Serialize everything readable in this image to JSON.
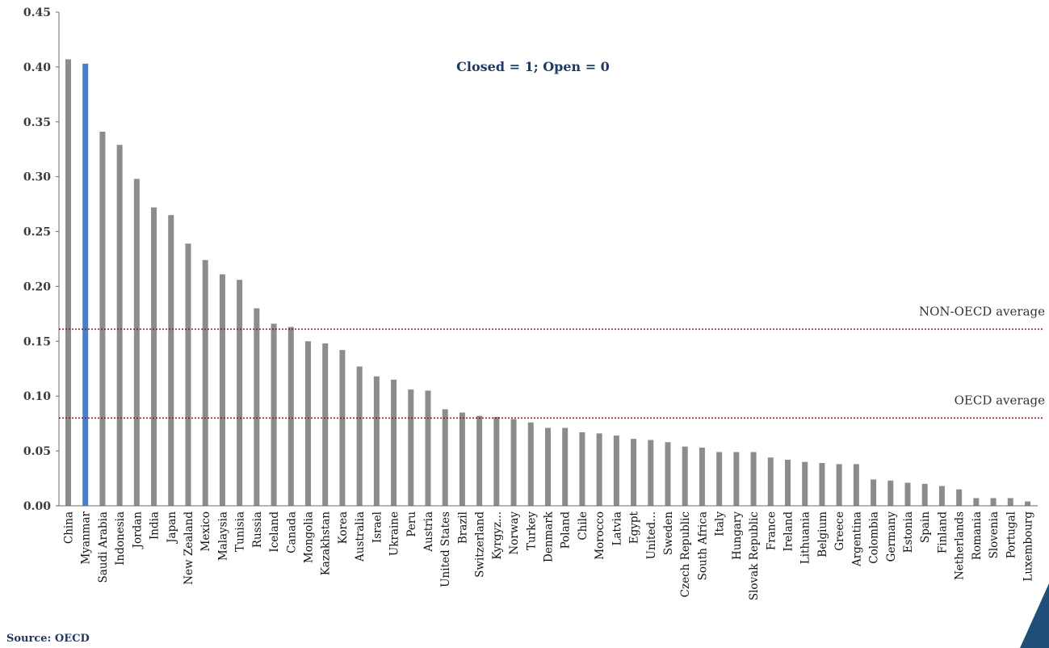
{
  "chart_data": {
    "type": "bar",
    "title": "",
    "annotation": "Closed = 1; Open = 0",
    "ylim": [
      0,
      0.45
    ],
    "yticks": [
      "0.00",
      "0.05",
      "0.10",
      "0.15",
      "0.20",
      "0.25",
      "0.30",
      "0.35",
      "0.40",
      "0.45"
    ],
    "categories": [
      "China",
      "Myanmar",
      "Saudi Arabia",
      "Indonesia",
      "Jordan",
      "India",
      "Japan",
      "New Zealand",
      "Mexico",
      "Malaysia",
      "Tunisia",
      "Russia",
      "Iceland",
      "Canada",
      "Mongolia",
      "Kazakhstan",
      "Korea",
      "Australia",
      "Israel",
      "Ukraine",
      "Peru",
      "Austria",
      "United States",
      "Brazil",
      "Switzerland",
      "Kyrgyz...",
      "Norway",
      "Turkey",
      "Denmark",
      "Poland",
      "Chile",
      "Morocco",
      "Latvia",
      "Egypt",
      "United...",
      "Sweden",
      "Czech Republic",
      "South Africa",
      "Italy",
      "Hungary",
      "Slovak Republic",
      "France",
      "Ireland",
      "Lithuania",
      "Belgium",
      "Greece",
      "Argentina",
      "Colombia",
      "Germany",
      "Estonia",
      "Spain",
      "Finland",
      "Netherlands",
      "Romania",
      "Slovenia",
      "Portugal",
      "Luxembourg"
    ],
    "values": [
      0.407,
      0.403,
      0.341,
      0.329,
      0.298,
      0.272,
      0.265,
      0.239,
      0.224,
      0.211,
      0.206,
      0.18,
      0.166,
      0.163,
      0.15,
      0.148,
      0.142,
      0.127,
      0.118,
      0.115,
      0.106,
      0.105,
      0.088,
      0.085,
      0.082,
      0.081,
      0.079,
      0.076,
      0.071,
      0.071,
      0.067,
      0.066,
      0.064,
      0.061,
      0.06,
      0.058,
      0.054,
      0.053,
      0.049,
      0.049,
      0.049,
      0.044,
      0.042,
      0.04,
      0.039,
      0.038,
      0.038,
      0.024,
      0.023,
      0.021,
      0.02,
      0.018,
      0.015,
      0.007,
      0.007,
      0.007,
      0.004
    ],
    "highlight_category": "Myanmar",
    "reference_lines": [
      {
        "label": "NON-OECD average",
        "value": 0.161
      },
      {
        "label": "OECD average",
        "value": 0.08
      }
    ],
    "colors": {
      "bar": "#8c8c8c",
      "highlight": "#4a7fc1",
      "reference": "#c00000",
      "annotation": "#1f3864",
      "corner": "#1f4e79"
    },
    "grid": false
  },
  "source": "Source: OECD"
}
